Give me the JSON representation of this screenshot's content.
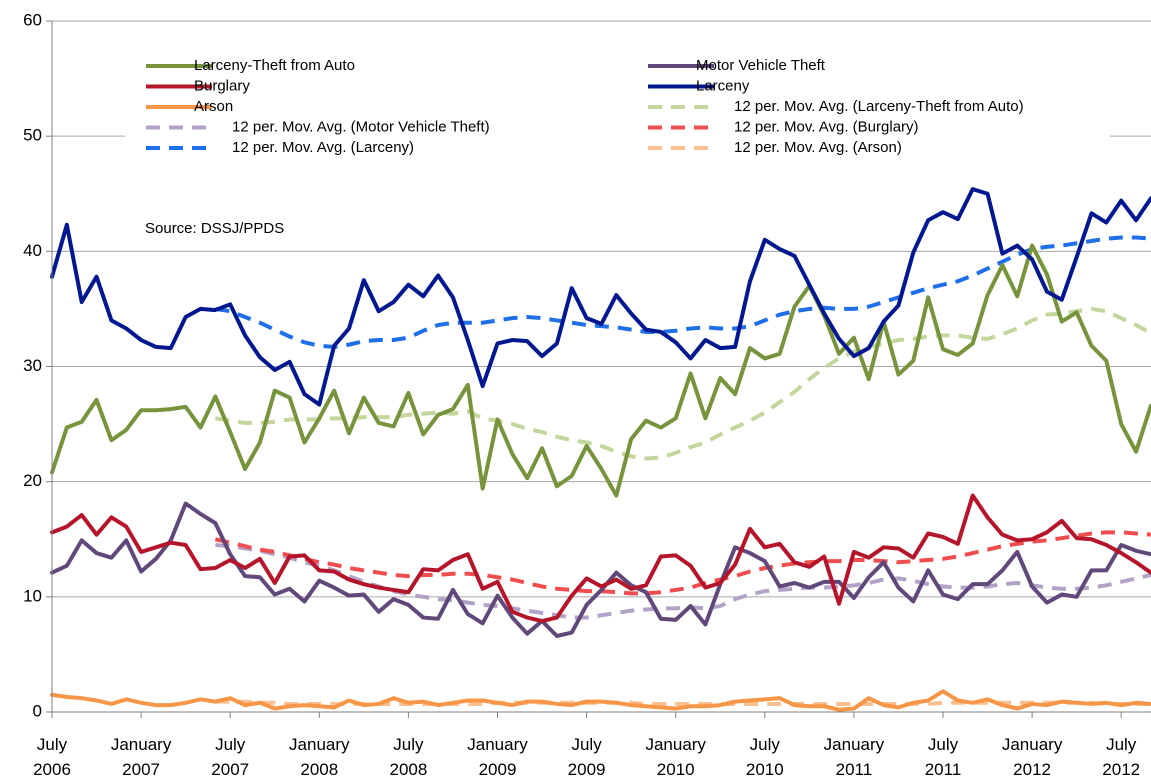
{
  "chart_data": {
    "type": "line",
    "annotation": "Source: DSSJ/PPDS",
    "categories": [
      "July 2006",
      null,
      null,
      null,
      null,
      null,
      "January 2007",
      null,
      null,
      null,
      null,
      null,
      "July 2007",
      null,
      null,
      null,
      null,
      null,
      "January 2008",
      null,
      null,
      null,
      null,
      null,
      "July 2008",
      null,
      null,
      null,
      null,
      null,
      "January 2009",
      null,
      null,
      null,
      null,
      null,
      "July 2009",
      null,
      null,
      null,
      null,
      null,
      "January 2010",
      null,
      null,
      null,
      null,
      null,
      "July 2010",
      null,
      null,
      null,
      null,
      null,
      "January 2011",
      null,
      null,
      null,
      null,
      null,
      "July 2011",
      null,
      null,
      null,
      null,
      null,
      "January 2012",
      null,
      null,
      null,
      null,
      null,
      "July 2012",
      null,
      null
    ],
    "ylim": [
      0,
      60
    ],
    "yticks": [
      0,
      10,
      20,
      30,
      40,
      50,
      60
    ],
    "grid": true,
    "series": [
      {
        "name": "Larceny-Theft from Auto",
        "color": "#77933c",
        "dash": false,
        "values": [
          20.8,
          24.7,
          25.2,
          27.1,
          23.6,
          24.5,
          26.2,
          26.2,
          26.3,
          26.5,
          24.7,
          27.4,
          24.3,
          21.1,
          23.4,
          27.9,
          27.3,
          23.4,
          25.5,
          27.9,
          24.2,
          27.3,
          25.1,
          24.8,
          27.7,
          24.1,
          25.8,
          26.3,
          28.4,
          19.4,
          25.4,
          22.4,
          20.3,
          22.9,
          19.6,
          20.5,
          23.1,
          21.1,
          18.8,
          23.7,
          25.3,
          24.7,
          25.5,
          29.4,
          25.5,
          29.0,
          27.6,
          31.6,
          30.7,
          31.1,
          35.2,
          37.0,
          34.4,
          31.1,
          32.5,
          28.9,
          33.9,
          29.3,
          30.5,
          36.0,
          31.5,
          31.0,
          32.0,
          36.2,
          38.8,
          36.1,
          40.5,
          38.0,
          33.9,
          34.7,
          31.8,
          30.5,
          25.0,
          22.6,
          26.6
        ]
      },
      {
        "name": "Motor Vehicle Theft",
        "color": "#60497a",
        "dash": false,
        "values": [
          12.1,
          12.7,
          14.9,
          13.8,
          13.4,
          14.9,
          12.2,
          13.3,
          14.9,
          18.1,
          17.2,
          16.4,
          13.7,
          11.8,
          11.7,
          10.2,
          10.7,
          9.6,
          11.4,
          10.8,
          10.1,
          10.2,
          8.7,
          9.8,
          9.3,
          8.2,
          8.1,
          10.6,
          8.5,
          7.7,
          10.1,
          8.2,
          6.8,
          7.9,
          6.6,
          6.9,
          9.3,
          10.6,
          12.1,
          11.0,
          10.4,
          8.1,
          8.0,
          9.2,
          7.6,
          11.1,
          14.3,
          13.8,
          13.1,
          10.9,
          11.2,
          10.8,
          11.3,
          11.3,
          9.9,
          11.7,
          13.0,
          10.8,
          9.6,
          12.3,
          10.2,
          9.8,
          11.1,
          11.1,
          12.3,
          13.9,
          10.9,
          9.5,
          10.2,
          10.0,
          12.3,
          12.3,
          14.5,
          14.0,
          13.7
        ]
      },
      {
        "name": "Burglary",
        "color": "#b5152b",
        "dash": false,
        "values": [
          15.6,
          16.1,
          17.1,
          15.4,
          16.9,
          16.1,
          13.9,
          14.3,
          14.7,
          14.5,
          12.4,
          12.5,
          13.2,
          12.5,
          13.3,
          11.2,
          13.5,
          13.6,
          12.3,
          12.2,
          11.5,
          11.1,
          10.8,
          10.6,
          10.4,
          12.4,
          12.3,
          13.2,
          13.7,
          10.7,
          11.3,
          8.7,
          8.2,
          7.9,
          8.2,
          10.1,
          11.6,
          10.9,
          11.5,
          10.7,
          11.0,
          13.5,
          13.6,
          12.7,
          10.8,
          11.2,
          12.8,
          15.9,
          14.3,
          14.6,
          13.0,
          12.6,
          13.5,
          9.4,
          13.9,
          13.4,
          14.3,
          14.2,
          13.4,
          15.5,
          15.2,
          14.6,
          18.8,
          16.9,
          15.4,
          14.9,
          15.0,
          15.6,
          16.6,
          15.1,
          15.0,
          14.5,
          13.8,
          13.0,
          12.1
        ]
      },
      {
        "name": "Larceny",
        "color": "#00188f",
        "dash": false,
        "values": [
          37.8,
          42.3,
          35.6,
          37.8,
          34.0,
          33.3,
          32.3,
          31.7,
          31.6,
          34.3,
          35.0,
          34.9,
          35.4,
          32.7,
          30.8,
          29.7,
          30.4,
          27.6,
          26.7,
          31.8,
          33.3,
          37.5,
          34.8,
          35.6,
          37.1,
          36.1,
          37.9,
          36.0,
          32.3,
          28.3,
          32.0,
          32.3,
          32.2,
          30.9,
          32.0,
          36.8,
          34.2,
          33.7,
          36.2,
          34.6,
          33.2,
          33.0,
          32.1,
          30.7,
          32.3,
          31.6,
          31.7,
          37.4,
          41.0,
          40.2,
          39.6,
          37.1,
          34.6,
          32.4,
          30.9,
          31.6,
          33.9,
          35.3,
          39.9,
          42.7,
          43.4,
          42.8,
          45.4,
          45.0,
          39.8,
          40.5,
          39.3,
          36.5,
          35.8,
          39.5,
          43.3,
          42.5,
          44.4,
          42.7,
          44.6
        ]
      },
      {
        "name": "Arson",
        "color": "#f79646",
        "dash": false,
        "values": [
          1.5,
          1.3,
          1.2,
          1.0,
          0.7,
          1.1,
          0.8,
          0.6,
          0.6,
          0.8,
          1.1,
          0.9,
          1.2,
          0.6,
          0.8,
          0.3,
          0.5,
          0.6,
          0.5,
          0.4,
          1.0,
          0.6,
          0.7,
          1.2,
          0.8,
          0.9,
          0.6,
          0.8,
          1.0,
          1.0,
          0.8,
          0.6,
          0.9,
          0.9,
          0.7,
          0.6,
          0.9,
          0.9,
          0.8,
          0.6,
          0.5,
          0.4,
          0.3,
          0.5,
          0.5,
          0.6,
          0.9,
          1.0,
          1.1,
          1.2,
          0.6,
          0.5,
          0.5,
          0.2,
          0.3,
          1.2,
          0.6,
          0.4,
          0.8,
          1.0,
          1.8,
          1.0,
          0.8,
          1.1,
          0.6,
          0.3,
          0.7,
          0.6,
          0.9,
          0.8,
          0.7,
          0.8,
          0.6,
          0.8,
          0.7
        ]
      },
      {
        "name": "12 per. Mov. Avg. (Larceny-Theft from Auto)",
        "color": "#c3d69b",
        "dash": true,
        "values": [
          null,
          null,
          null,
          null,
          null,
          null,
          null,
          null,
          null,
          null,
          null,
          25.5,
          25.3,
          25.1,
          25.1,
          25.2,
          25.4,
          25.4,
          25.4,
          25.5,
          25.5,
          25.6,
          25.6,
          25.6,
          25.8,
          25.9,
          26.0,
          25.9,
          26.1,
          25.5,
          25.3,
          25.0,
          24.6,
          24.3,
          23.9,
          23.6,
          23.4,
          23.1,
          22.6,
          22.2,
          22.0,
          22.1,
          22.5,
          23.0,
          23.4,
          24.1,
          24.7,
          25.3,
          26.0,
          26.9,
          27.8,
          28.9,
          29.9,
          30.7,
          31.3,
          31.7,
          32.0,
          32.3,
          32.4,
          32.6,
          32.7,
          32.7,
          32.5,
          32.4,
          32.8,
          33.3,
          34.0,
          34.5,
          34.6,
          34.8,
          35.0,
          34.8,
          34.2,
          33.6,
          32.9
        ]
      },
      {
        "name": "12 per. Mov. Avg. (Motor Vehicle Theft)",
        "color": "#b3a2c7",
        "dash": true,
        "values": [
          null,
          null,
          null,
          null,
          null,
          null,
          null,
          null,
          null,
          null,
          null,
          14.5,
          14.4,
          14.2,
          14.0,
          13.7,
          13.4,
          13.0,
          12.7,
          12.3,
          11.8,
          11.3,
          10.9,
          10.5,
          10.2,
          10.0,
          9.8,
          9.7,
          9.5,
          9.3,
          9.2,
          9.0,
          8.8,
          8.6,
          8.4,
          8.2,
          8.2,
          8.4,
          8.6,
          8.8,
          8.9,
          9.0,
          9.0,
          9.1,
          9.0,
          9.2,
          9.8,
          10.2,
          10.5,
          10.6,
          10.7,
          10.8,
          10.8,
          10.9,
          11.0,
          11.2,
          11.5,
          11.6,
          11.4,
          11.1,
          10.9,
          10.8,
          10.8,
          10.9,
          11.1,
          11.2,
          11.0,
          10.8,
          10.7,
          10.7,
          10.8,
          11.0,
          11.3,
          11.6,
          11.9
        ]
      },
      {
        "name": "12 per. Mov. Avg. (Burglary)",
        "color": "#f04e4e",
        "dash": true,
        "values": [
          null,
          null,
          null,
          null,
          null,
          null,
          null,
          null,
          null,
          null,
          null,
          15.0,
          14.7,
          14.4,
          14.1,
          13.9,
          13.6,
          13.3,
          13.0,
          12.8,
          12.5,
          12.3,
          12.1,
          11.9,
          11.8,
          11.9,
          11.9,
          12.0,
          12.0,
          11.9,
          11.7,
          11.5,
          11.2,
          10.9,
          10.7,
          10.6,
          10.5,
          10.5,
          10.4,
          10.3,
          10.3,
          10.4,
          10.6,
          10.8,
          11.2,
          11.5,
          11.8,
          12.2,
          12.5,
          12.7,
          12.9,
          13.0,
          13.1,
          13.1,
          13.2,
          13.2,
          13.1,
          13.0,
          13.1,
          13.2,
          13.3,
          13.5,
          13.8,
          14.1,
          14.4,
          14.6,
          14.8,
          14.9,
          15.1,
          15.3,
          15.5,
          15.6,
          15.6,
          15.5,
          15.4
        ]
      },
      {
        "name": "12 per. Mov. Avg. (Larceny)",
        "color": "#1f6fe8",
        "dash": true,
        "values": [
          null,
          null,
          null,
          null,
          null,
          null,
          null,
          null,
          null,
          null,
          null,
          35.0,
          34.8,
          34.3,
          33.8,
          33.2,
          32.6,
          32.1,
          31.8,
          31.7,
          31.9,
          32.2,
          32.3,
          32.3,
          32.5,
          33.1,
          33.6,
          33.8,
          33.8,
          33.8,
          34.0,
          34.2,
          34.3,
          34.2,
          34.0,
          33.8,
          33.6,
          33.5,
          33.4,
          33.2,
          33.0,
          33.0,
          33.1,
          33.3,
          33.4,
          33.3,
          33.3,
          33.5,
          34.0,
          34.5,
          34.8,
          35.0,
          35.1,
          35.0,
          35.0,
          35.2,
          35.6,
          36.0,
          36.4,
          36.8,
          37.1,
          37.4,
          37.9,
          38.5,
          39.1,
          39.7,
          40.2,
          40.4,
          40.5,
          40.7,
          40.9,
          41.1,
          41.2,
          41.2,
          41.1
        ]
      },
      {
        "name": "12 per. Mov. Avg. (Arson)",
        "color": "#fac090",
        "dash": true,
        "values": [
          null,
          null,
          null,
          null,
          null,
          null,
          null,
          null,
          null,
          null,
          null,
          0.9,
          0.9,
          0.9,
          0.8,
          0.8,
          0.7,
          0.7,
          0.7,
          0.7,
          0.7,
          0.7,
          0.7,
          0.7,
          0.7,
          0.7,
          0.7,
          0.7,
          0.7,
          0.7,
          0.8,
          0.8,
          0.8,
          0.8,
          0.8,
          0.8,
          0.8,
          0.8,
          0.8,
          0.8,
          0.7,
          0.7,
          0.7,
          0.7,
          0.7,
          0.7,
          0.7,
          0.7,
          0.7,
          0.7,
          0.7,
          0.7,
          0.7,
          0.7,
          0.7,
          0.7,
          0.7,
          0.7,
          0.7,
          0.7,
          0.8,
          0.8,
          0.8,
          0.8,
          0.8,
          0.8,
          0.8,
          0.8,
          0.8,
          0.8,
          0.8,
          0.7,
          0.7,
          0.7,
          0.7
        ]
      }
    ]
  }
}
